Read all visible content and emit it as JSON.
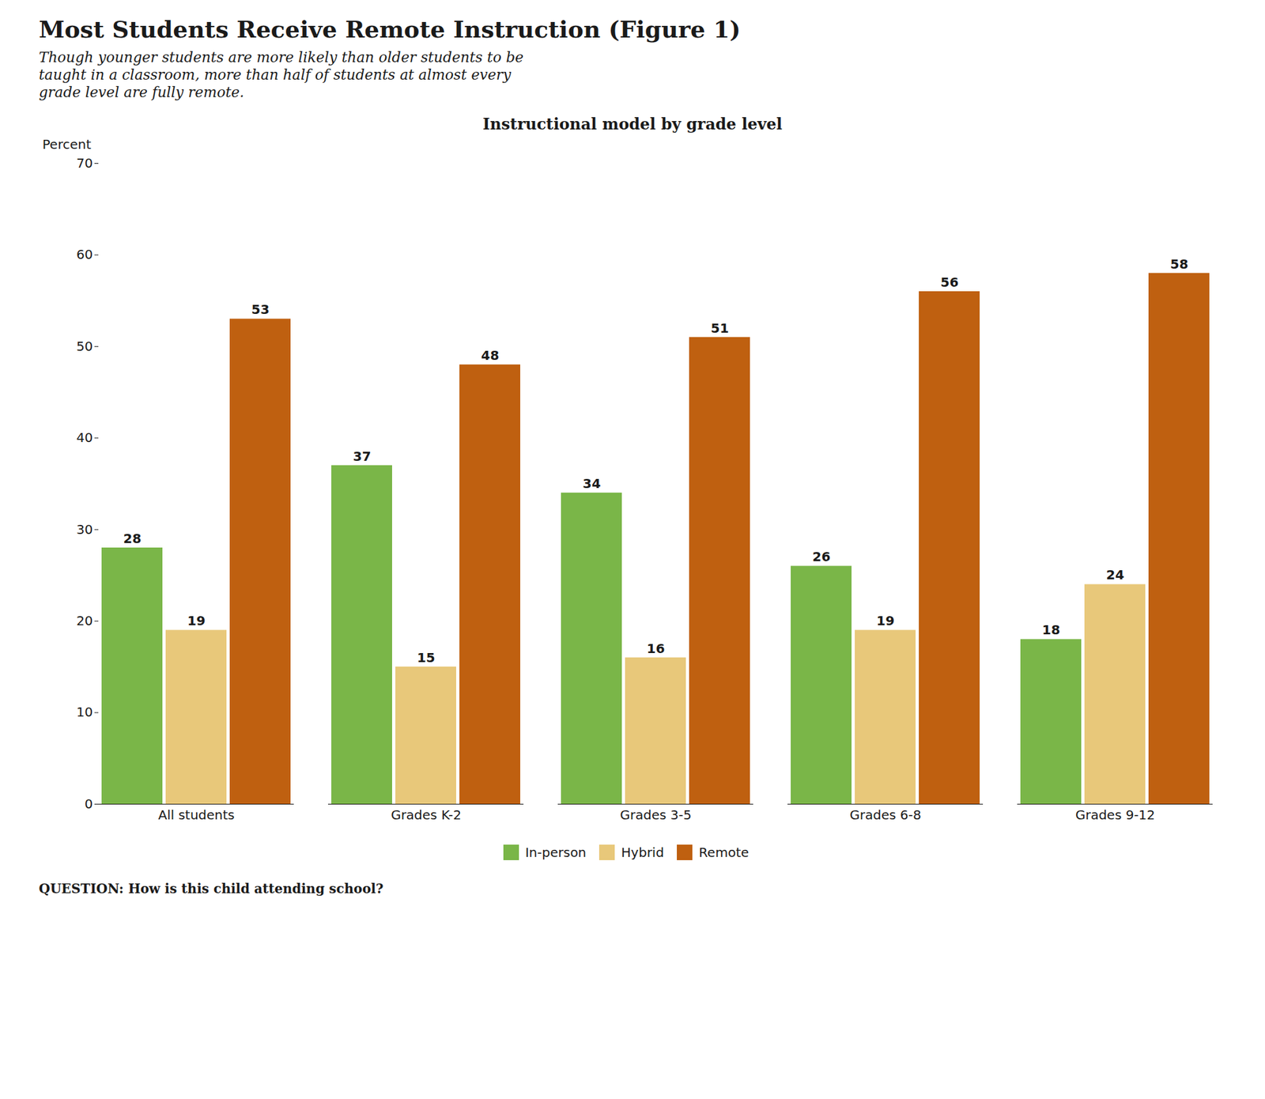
{
  "chart_data": {
    "type": "bar",
    "title": "Most Students Receive Remote Instruction (Figure 1)",
    "subtitle": [
      "Though younger students are more likely than older students to be",
      "taught in a classroom, more than half of students at almost every",
      "grade level are fully remote."
    ],
    "annotations": [
      "Instructional model by grade level",
      "QUESTION: How is this child attending school?"
    ],
    "categories": [
      "All students",
      "Grades K-2",
      "Grades 3-5",
      "Grades 6-8",
      "Grades 9-12"
    ],
    "series": [
      {
        "name": "In-person",
        "color": "#7ab648",
        "values": [
          28,
          37,
          34,
          26,
          18
        ]
      },
      {
        "name": "Hybrid",
        "color": "#e8c87a",
        "values": [
          19,
          15,
          16,
          19,
          24
        ]
      },
      {
        "name": "Remote",
        "color": "#bf6010",
        "values": [
          53,
          48,
          51,
          56,
          58
        ]
      }
    ],
    "ylabel": "Percent",
    "ylim": [
      0,
      70
    ],
    "yticks": [
      0,
      10,
      20,
      30,
      40,
      50,
      60,
      70
    ],
    "grid": false,
    "legend": "bottom",
    "data_labels": true
  }
}
